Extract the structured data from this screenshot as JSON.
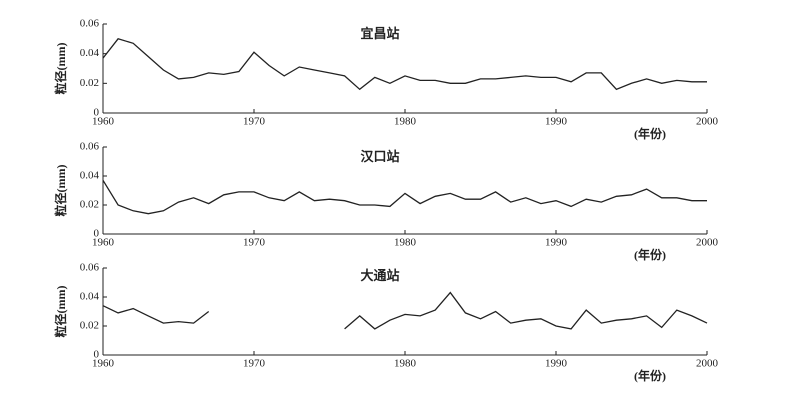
{
  "chart_data": [
    {
      "type": "line",
      "title": "宜昌站",
      "ylabel": "粒径(mm)",
      "xlabel": "(年份)",
      "color": "#222222",
      "x": [
        1960,
        1961,
        1962,
        1963,
        1964,
        1965,
        1966,
        1967,
        1968,
        1969,
        1970,
        1971,
        1972,
        1973,
        1974,
        1975,
        1976,
        1977,
        1978,
        1979,
        1980,
        1981,
        1982,
        1983,
        1984,
        1985,
        1986,
        1987,
        1988,
        1989,
        1990,
        1991,
        1992,
        1993,
        1994,
        1995,
        1996,
        1997,
        1998,
        1999,
        2000
      ],
      "values": [
        0.037,
        0.05,
        0.047,
        0.038,
        0.029,
        0.023,
        0.024,
        0.027,
        0.026,
        0.028,
        0.041,
        0.032,
        0.025,
        0.031,
        0.029,
        0.027,
        0.025,
        0.016,
        0.024,
        0.02,
        0.025,
        0.022,
        0.022,
        0.02,
        0.02,
        0.023,
        0.023,
        0.024,
        0.025,
        0.024,
        0.024,
        0.021,
        0.027,
        0.027,
        0.016,
        0.02,
        0.023,
        0.02,
        0.022,
        0.021,
        0.021
      ],
      "xlim": [
        1960,
        2000
      ],
      "xticks": [
        1960,
        1970,
        1980,
        1990,
        2000
      ],
      "ylim": [
        0,
        0.06
      ],
      "yticks": [
        0,
        0.02,
        0.04,
        0.06
      ]
    },
    {
      "type": "line",
      "title": "汉口站",
      "ylabel": "粒径(mm)",
      "xlabel": "(年份)",
      "color": "#222222",
      "x": [
        1960,
        1961,
        1962,
        1963,
        1964,
        1965,
        1966,
        1967,
        1968,
        1969,
        1970,
        1971,
        1972,
        1973,
        1974,
        1975,
        1976,
        1977,
        1978,
        1979,
        1980,
        1981,
        1982,
        1983,
        1984,
        1985,
        1986,
        1987,
        1988,
        1989,
        1990,
        1991,
        1992,
        1993,
        1994,
        1995,
        1996,
        1997,
        1998,
        1999,
        2000
      ],
      "values": [
        0.037,
        0.02,
        0.016,
        0.014,
        0.016,
        0.022,
        0.025,
        0.021,
        0.027,
        0.029,
        0.029,
        0.025,
        0.023,
        0.029,
        0.023,
        0.024,
        0.023,
        0.02,
        0.02,
        0.019,
        0.028,
        0.021,
        0.026,
        0.028,
        0.024,
        0.024,
        0.029,
        0.022,
        0.025,
        0.021,
        0.023,
        0.019,
        0.024,
        0.022,
        0.026,
        0.027,
        0.031,
        0.025,
        0.025,
        0.023,
        0.023
      ],
      "xlim": [
        1960,
        2000
      ],
      "xticks": [
        1960,
        1970,
        1980,
        1990,
        2000
      ],
      "ylim": [
        0,
        0.06
      ],
      "yticks": [
        0,
        0.02,
        0.04,
        0.06
      ]
    },
    {
      "type": "line",
      "title": "大通站",
      "ylabel": "粒径(mm)",
      "xlabel": "(年份)",
      "color": "#222222",
      "x": [
        1960,
        1961,
        1962,
        1963,
        1964,
        1965,
        1966,
        1967,
        1968,
        1969,
        1970,
        1971,
        1972,
        1973,
        1974,
        1975,
        1976,
        1977,
        1978,
        1979,
        1980,
        1981,
        1982,
        1983,
        1984,
        1985,
        1986,
        1987,
        1988,
        1989,
        1990,
        1991,
        1992,
        1993,
        1994,
        1995,
        1996,
        1997,
        1998,
        1999,
        2000
      ],
      "values": [
        0.034,
        0.029,
        0.032,
        0.027,
        0.022,
        0.023,
        0.022,
        0.03,
        null,
        null,
        null,
        null,
        null,
        null,
        null,
        null,
        0.018,
        0.027,
        0.018,
        0.024,
        0.028,
        0.027,
        0.031,
        0.043,
        0.029,
        0.025,
        0.03,
        0.022,
        0.024,
        0.025,
        0.02,
        0.018,
        0.031,
        0.022,
        0.024,
        0.025,
        0.027,
        0.019,
        0.031,
        0.027,
        0.022
      ],
      "xlim": [
        1960,
        2000
      ],
      "xticks": [
        1960,
        1970,
        1980,
        1990,
        2000
      ],
      "ylim": [
        0,
        0.06
      ],
      "yticks": [
        0,
        0.02,
        0.04,
        0.06
      ]
    }
  ]
}
